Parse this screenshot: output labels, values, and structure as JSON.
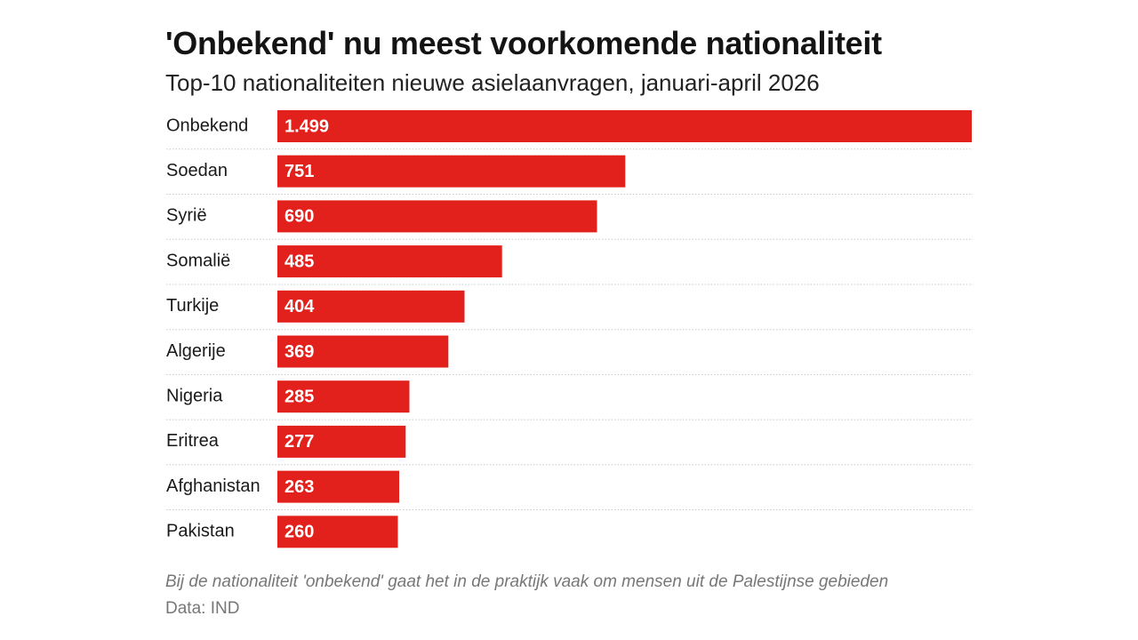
{
  "chart_data": {
    "type": "bar",
    "orientation": "horizontal",
    "title": "'Onbekend' nu meest voorkomende nationaliteit",
    "subtitle": "Top-10 nationaliteiten nieuwe asielaanvragen, januari-april 2026",
    "categories": [
      "Onbekend",
      "Soedan",
      "Syrië",
      "Somalië",
      "Turkije",
      "Algerije",
      "Nigeria",
      "Eritrea",
      "Afghanistan",
      "Pakistan"
    ],
    "values": [
      1499,
      751,
      690,
      485,
      404,
      369,
      285,
      277,
      263,
      260
    ],
    "value_labels": [
      "1.499",
      "751",
      "690",
      "485",
      "404",
      "369",
      "285",
      "277",
      "263",
      "260"
    ],
    "xlim": [
      0,
      1499
    ],
    "grid": false,
    "legend": "none",
    "note": "Bij de nationaliteit 'onbekend' gaat het in de praktijk vaak om mensen uit de Palestijnse gebieden",
    "source": "Data: IND"
  },
  "colors": {
    "bar": "#e2211c",
    "bar_label": "#ffffff",
    "category_label": "#1a1a1a",
    "separator": "#c8c8c8"
  }
}
